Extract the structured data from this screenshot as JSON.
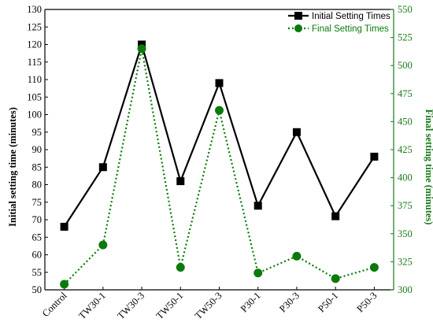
{
  "chart_data": {
    "type": "line",
    "categories": [
      "Control",
      "TW30-1",
      "TW30-3",
      "TW50-1",
      "TW50-3",
      "P30-1",
      "P30-3",
      "P50-1",
      "P50-3"
    ],
    "series": [
      {
        "name": "Initial Setting Times",
        "axis": "left",
        "color": "#000000",
        "line_style": "solid",
        "marker": "square",
        "values": [
          68,
          85,
          120,
          81,
          109,
          74,
          95,
          71,
          88
        ]
      },
      {
        "name": "Final Setting Times",
        "axis": "right",
        "color": "#0a7a0a",
        "line_style": "dotted",
        "marker": "circle",
        "values": [
          305,
          340,
          515,
          320,
          460,
          315,
          330,
          310,
          320
        ]
      }
    ],
    "ylabel": "Initial setting time (minutes)",
    "y2label": "Final setting time (minutes)",
    "ylim": [
      50,
      130
    ],
    "y2lim": [
      300,
      550
    ],
    "yticks": [
      "50",
      "55",
      "60",
      "65",
      "70",
      "75",
      "80",
      "85",
      "90",
      "95",
      "100",
      "105",
      "110",
      "115",
      "120",
      "125",
      "130"
    ],
    "y2ticks": [
      "300",
      "325",
      "350",
      "375",
      "400",
      "425",
      "450",
      "475",
      "500",
      "525",
      "550"
    ],
    "legend_position": "top-right",
    "grid": false
  }
}
